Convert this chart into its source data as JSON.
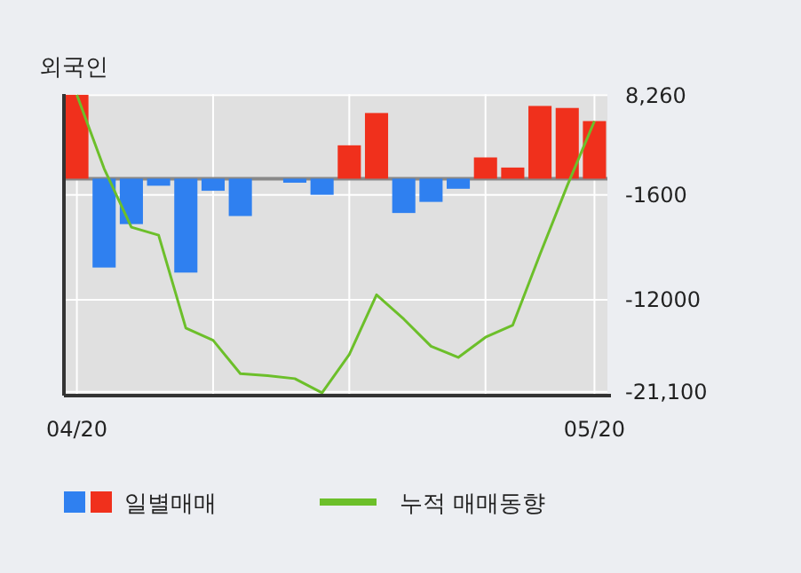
{
  "chart_data": {
    "type": "bar",
    "title": "외국인",
    "categories": [
      "04/20",
      null,
      null,
      null,
      null,
      null,
      null,
      null,
      null,
      null,
      null,
      null,
      null,
      null,
      null,
      null,
      null,
      null,
      null,
      "05/20"
    ],
    "series": [
      {
        "name": "일별매매",
        "colors": [
          "#f0301c",
          "#2f80f0",
          "#2f80f0",
          "#2f80f0",
          "#2f80f0",
          "#2f80f0",
          "#2f80f0",
          "#2f80f0",
          "#2f80f0",
          "#2f80f0",
          "#f0301c",
          "#f0301c",
          "#2f80f0",
          "#2f80f0",
          "#2f80f0",
          "#f0301c",
          "#f0301c",
          "#f0301c",
          "#f0301c",
          "#f0301c"
        ],
        "values": [
          8300,
          -8800,
          -4500,
          -700,
          -9300,
          -1200,
          -3700,
          0,
          -400,
          -1600,
          3300,
          6500,
          -3400,
          -2300,
          -1000,
          2100,
          1100,
          7200,
          7000,
          5700
        ]
      },
      {
        "name": "누적 매매동향",
        "type": "line",
        "color": "#6cbf2a",
        "values": [
          8300,
          1000,
          -4800,
          -5600,
          -14800,
          -16000,
          -19300,
          -19500,
          -19800,
          -21200,
          -17400,
          -11500,
          -13900,
          -16600,
          -17700,
          -15700,
          -14500,
          -7500,
          -700,
          5700
        ]
      }
    ],
    "ylim": [
      -21480,
      8380
    ],
    "yticks": [
      {
        "value": 8260,
        "label": "8,260"
      },
      {
        "value": -1600,
        "label": "-1600"
      },
      {
        "value": -12000,
        "label": "-12000"
      },
      {
        "value": -21100,
        "label": "-21,100"
      }
    ],
    "grid": true,
    "legend": "bottom"
  }
}
